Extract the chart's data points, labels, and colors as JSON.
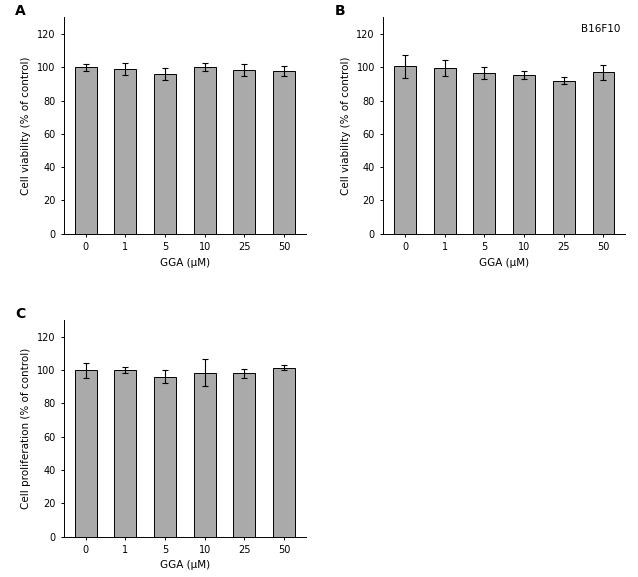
{
  "categories": [
    "0",
    "1",
    "5",
    "10",
    "25",
    "50"
  ],
  "xlabel": "GGA (μM)",
  "bar_color": "#aaaaaa",
  "bar_edgecolor": "#000000",
  "bar_width": 0.55,
  "ylim": [
    0,
    130
  ],
  "yticks": [
    0,
    20,
    40,
    60,
    80,
    100,
    120
  ],
  "panel_A": {
    "label": "A",
    "ylabel": "Cell viability (% of control)",
    "values": [
      100.0,
      99.0,
      96.0,
      100.0,
      98.5,
      98.0
    ],
    "errors": [
      2.0,
      3.5,
      3.5,
      2.5,
      3.5,
      3.0
    ],
    "annotation": null
  },
  "panel_B": {
    "label": "B",
    "ylabel": "Cell viability (% of control)",
    "values": [
      100.5,
      99.5,
      96.5,
      95.5,
      92.0,
      97.0
    ],
    "errors": [
      7.0,
      5.0,
      3.5,
      2.5,
      2.0,
      4.5
    ],
    "annotation": "B16F10"
  },
  "panel_C": {
    "label": "C",
    "ylabel": "Cell proliferation (% of control)",
    "values": [
      100.0,
      100.0,
      96.0,
      98.5,
      98.0,
      101.5
    ],
    "errors": [
      4.5,
      2.0,
      4.0,
      8.0,
      2.5,
      1.5
    ],
    "annotation": null
  },
  "figure_bgcolor": "#ffffff",
  "tick_fontsize": 7,
  "label_fontsize": 7.5,
  "panel_label_fontsize": 10,
  "annotation_fontsize": 7.5
}
